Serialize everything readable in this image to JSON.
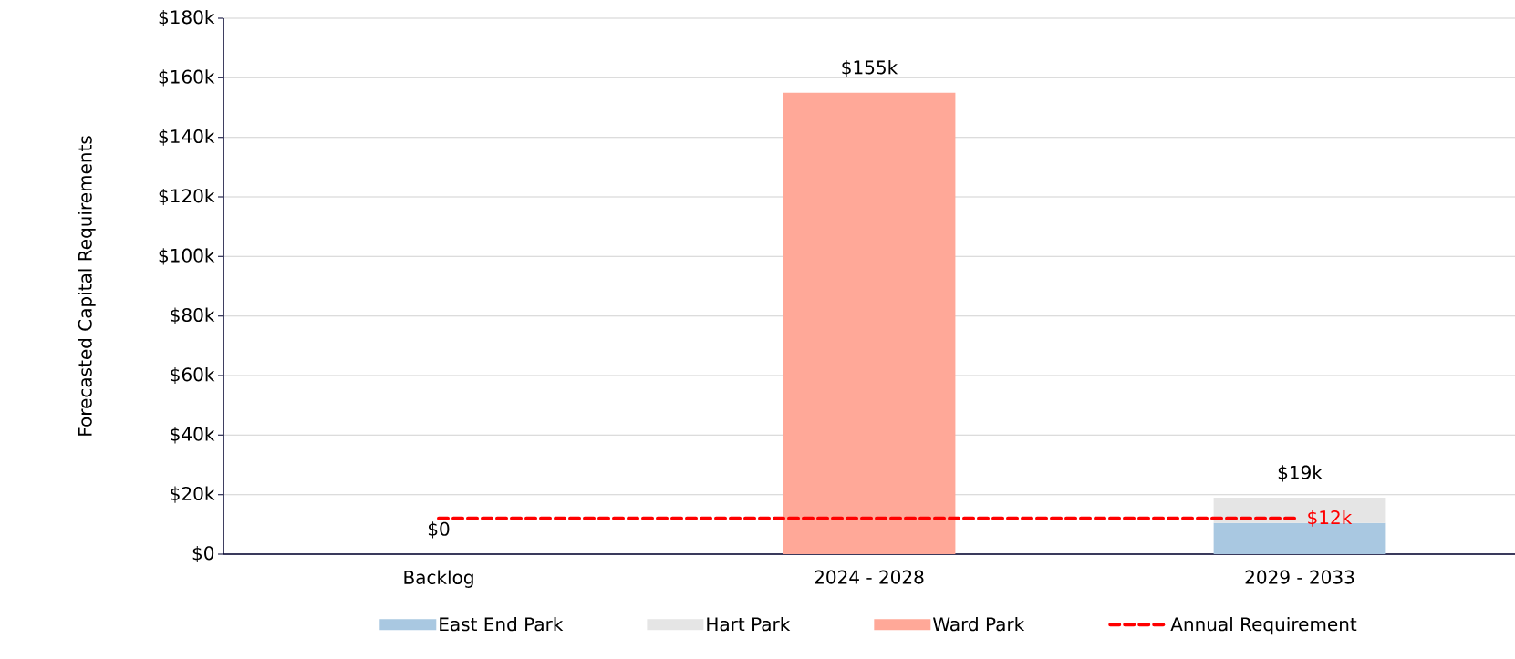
{
  "chart_data": {
    "type": "bar",
    "stacked": true,
    "ylabel": "Forecasted Capital Requirements",
    "categories": [
      "Backlog",
      "2024 - 2028",
      "2029 - 2033"
    ],
    "series": [
      {
        "name": "East End Park",
        "color": "#a9c8e1",
        "values": [
          0,
          0,
          10.5
        ]
      },
      {
        "name": "Hart Park",
        "color": "#e5e5e5",
        "values": [
          0,
          0,
          8.5
        ]
      },
      {
        "name": "Ward Park",
        "color": "#ffa898",
        "values": [
          0,
          155,
          0
        ]
      },
      {
        "name": "Annual Requirement",
        "type": "line",
        "color": "#ff0000",
        "line_style": "dashed",
        "values": [
          12,
          12,
          12
        ],
        "value_labels": [
          null,
          null,
          "$12k"
        ]
      }
    ],
    "totals": [
      "$0",
      "$155k",
      "$19k"
    ],
    "ylim": [
      0,
      180
    ],
    "yticks": [
      {
        "value": 0,
        "label": "$0"
      },
      {
        "value": 20,
        "label": "$20k"
      },
      {
        "value": 40,
        "label": "$40k"
      },
      {
        "value": 60,
        "label": "$60k"
      },
      {
        "value": 80,
        "label": "$80k"
      },
      {
        "value": 100,
        "label": "$100k"
      },
      {
        "value": 120,
        "label": "$120k"
      },
      {
        "value": 140,
        "label": "$140k"
      },
      {
        "value": 160,
        "label": "$160k"
      },
      {
        "value": 180,
        "label": "$180k"
      }
    ],
    "grid": "y",
    "legend": "bottom"
  }
}
